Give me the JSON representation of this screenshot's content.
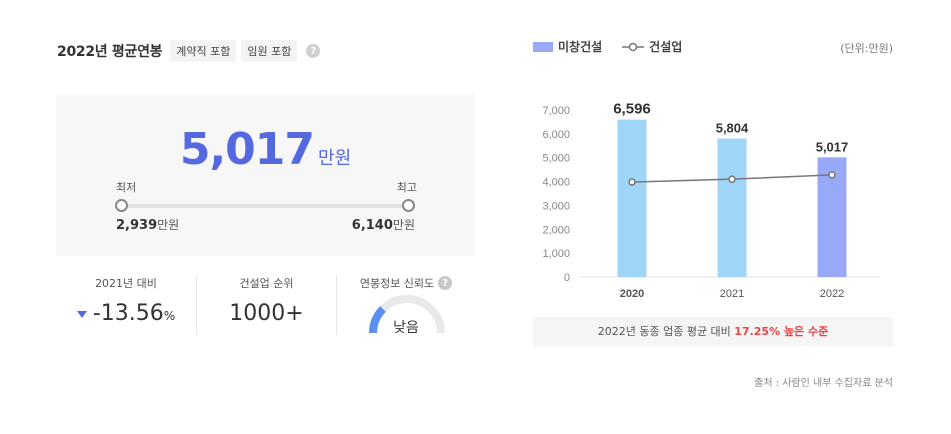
{
  "header": {
    "title": "2022년 평균연봉",
    "tags": [
      "계약직 포함",
      "임원 포함"
    ],
    "help_icon": "question-icon"
  },
  "salary": {
    "value": "5,017",
    "unit": "만원",
    "min_label": "최저",
    "max_label": "최고",
    "min_value": "2,939",
    "max_value": "6,140",
    "value_unit": "만원"
  },
  "stats": {
    "change_label": "2021년 대비",
    "change_value": "-13.56",
    "change_unit": "%",
    "rank_label": "건설업 순위",
    "rank_value": "1000+",
    "reliability_label": "연봉정보 신뢰도",
    "reliability_value": "낮음",
    "reliability_level": 0.25
  },
  "legend": {
    "company": "미창건설",
    "industry": "건설업"
  },
  "unit_note": "(단위:만원)",
  "comparison": {
    "prefix": "2022년 동종 업종 평균 대비",
    "highlight": "17.25% 높은 수준"
  },
  "source": "출처 : 사람인 내부 수집자료 분석",
  "colors": {
    "accent": "#5468e0",
    "bar_light": "#9fd6f8",
    "bar_current": "#98aaf7",
    "line": "#777777",
    "highlight": "#e94545"
  },
  "chart_data": {
    "type": "bar",
    "categories": [
      "2020",
      "2021",
      "2022"
    ],
    "series": [
      {
        "name": "미창건설",
        "type": "bar",
        "values": [
          6596,
          5804,
          5017
        ],
        "labels": [
          "6,596",
          "5,804",
          "5,017"
        ]
      },
      {
        "name": "건설업",
        "type": "line",
        "values": [
          3980,
          4100,
          4280
        ]
      }
    ],
    "yticks": [
      "7,000",
      "6,000",
      "5,000",
      "4,000",
      "3,000",
      "2,000",
      "1,000",
      "0"
    ],
    "ylim": [
      0,
      7000
    ]
  }
}
